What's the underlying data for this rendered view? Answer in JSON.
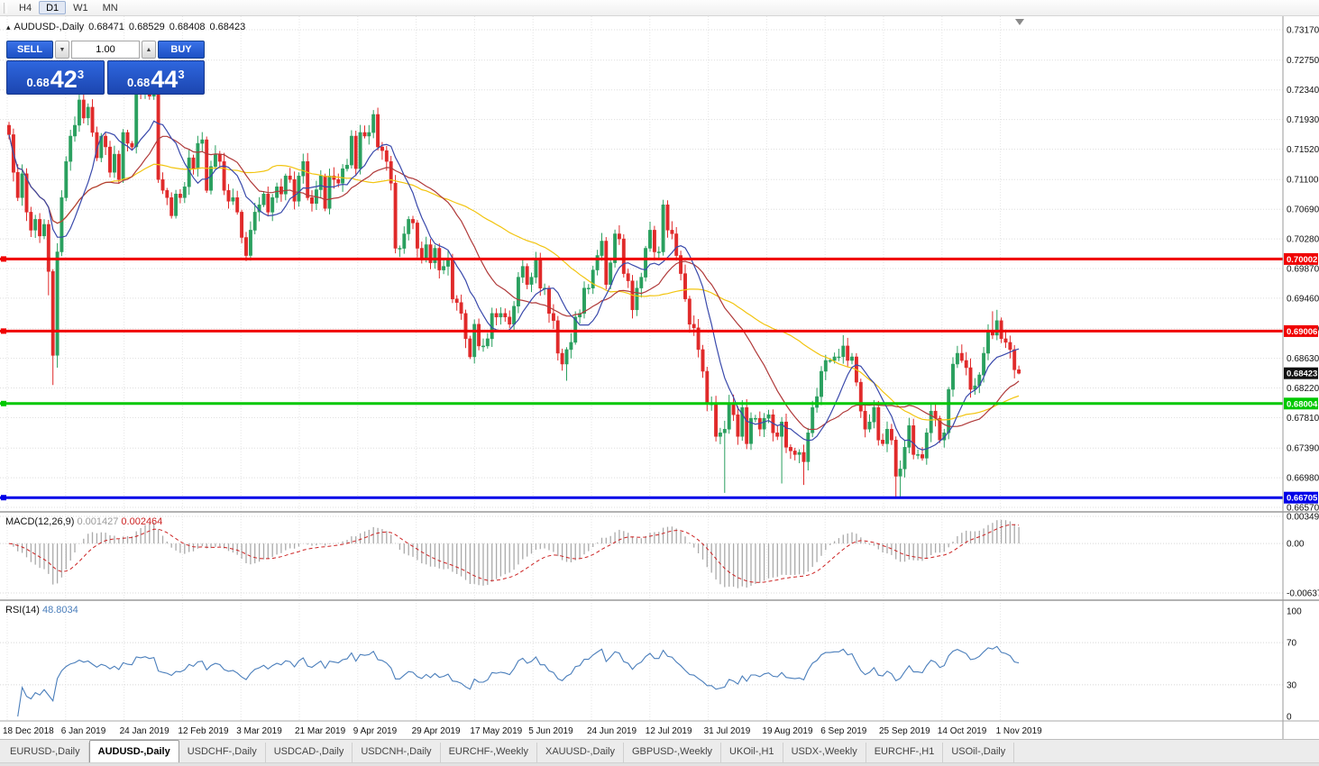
{
  "toolbar": {
    "periods": [
      {
        "label": "H4",
        "active": false
      },
      {
        "label": "D1",
        "active": true
      },
      {
        "label": "W1",
        "active": false
      },
      {
        "label": "MN",
        "active": false
      }
    ]
  },
  "chart": {
    "title": {
      "collapse_arrow": "▴",
      "symbol_period": "AUDUSD-,Daily",
      "open": "0.68471",
      "high": "0.68529",
      "low": "0.68408",
      "close": "0.68423"
    },
    "one_click": {
      "sell_label": "SELL",
      "buy_label": "BUY",
      "volume": "1.00",
      "sell_price": {
        "prefix": "0.68",
        "big": "42",
        "sup": "3"
      },
      "buy_price": {
        "prefix": "0.68",
        "big": "44",
        "sup": "3"
      }
    },
    "colors": {
      "up": "#2aa05f",
      "down": "#e02a2a",
      "ma_yellow": "#f2c40f",
      "ma_red": "#b03a3a",
      "ma_blue": "#3949ab",
      "macd_hist": "#aaaaaa",
      "macd_signal": "#cc2222",
      "rsi": "#4a7ebb",
      "level_red": "#f00000",
      "level_green": "#00c800",
      "level_blue": "#0000e8",
      "tag_black": "#101010"
    },
    "price_scale": {
      "labels": [
        "0.73170",
        "0.72750",
        "0.72340",
        "0.71930",
        "0.71520",
        "0.71100",
        "0.70690",
        "0.70280",
        "0.69870",
        "0.69460",
        "0.69040",
        "0.68630",
        "0.68220",
        "0.67810",
        "0.67390",
        "0.66980",
        "0.66570"
      ]
    },
    "levels": [
      {
        "price": 0.70002,
        "label": "0.70002",
        "color_key": "level_red"
      },
      {
        "price": 0.69006,
        "label": "0.69006",
        "color_key": "level_red"
      },
      {
        "price": 0.68004,
        "label": "0.68004",
        "color_key": "level_green"
      },
      {
        "price": 0.66705,
        "label": "0.66705",
        "color_key": "level_blue"
      }
    ],
    "current_price": {
      "value": 0.68423,
      "label": "0.68423"
    }
  },
  "chart_data": {
    "type": "candlestick",
    "symbol": "AUDUSD",
    "timeframe": "Daily",
    "first_open": 0.7185,
    "closes": [
      0.7172,
      0.712,
      0.7085,
      0.7118,
      0.7065,
      0.704,
      0.7055,
      0.7032,
      0.7048,
      0.6983,
      0.6867,
      0.701,
      0.7085,
      0.7135,
      0.717,
      0.7185,
      0.722,
      0.7195,
      0.721,
      0.7175,
      0.714,
      0.717,
      0.7155,
      0.712,
      0.7145,
      0.711,
      0.7175,
      0.716,
      0.7155,
      0.7235,
      0.7228,
      0.724,
      0.7225,
      0.7235,
      0.711,
      0.7095,
      0.7085,
      0.706,
      0.709,
      0.7085,
      0.71,
      0.714,
      0.7125,
      0.716,
      0.7165,
      0.7095,
      0.7128,
      0.7145,
      0.7135,
      0.7095,
      0.708,
      0.7085,
      0.7065,
      0.703,
      0.7005,
      0.704,
      0.7065,
      0.7075,
      0.709,
      0.7065,
      0.7085,
      0.71,
      0.709,
      0.7115,
      0.711,
      0.708,
      0.7115,
      0.7135,
      0.7085,
      0.7077,
      0.7096,
      0.7115,
      0.707,
      0.7115,
      0.711,
      0.7105,
      0.7125,
      0.713,
      0.717,
      0.7125,
      0.7175,
      0.717,
      0.7175,
      0.72,
      0.7155,
      0.715,
      0.7135,
      0.7105,
      0.7015,
      0.7015,
      0.7035,
      0.7055,
      0.705,
      0.7015,
      0.7,
      0.702,
      0.6995,
      0.7015,
      0.6985,
      0.699,
      0.7,
      0.6945,
      0.694,
      0.6925,
      0.689,
      0.6865,
      0.691,
      0.688,
      0.688,
      0.689,
      0.6925,
      0.692,
      0.6925,
      0.692,
      0.691,
      0.6935,
      0.6975,
      0.699,
      0.6965,
      0.6975,
      0.7,
      0.696,
      0.696,
      0.6925,
      0.6915,
      0.687,
      0.6855,
      0.6875,
      0.6885,
      0.692,
      0.6925,
      0.696,
      0.696,
      0.6985,
      0.7005,
      0.7025,
      0.6965,
      0.6995,
      0.7035,
      0.7028,
      0.698,
      0.697,
      0.693,
      0.696,
      0.6975,
      0.7015,
      0.704,
      0.701,
      0.701,
      0.7075,
      0.704,
      0.7035,
      0.7005,
      0.698,
      0.6945,
      0.691,
      0.6905,
      0.6875,
      0.6845,
      0.68,
      0.68,
      0.6755,
      0.676,
      0.6765,
      0.68,
      0.6785,
      0.6755,
      0.6795,
      0.6745,
      0.678,
      0.678,
      0.6765,
      0.678,
      0.6785,
      0.676,
      0.6755,
      0.6775,
      0.674,
      0.6735,
      0.673,
      0.6733,
      0.672,
      0.676,
      0.6795,
      0.681,
      0.6845,
      0.686,
      0.686,
      0.6865,
      0.6865,
      0.688,
      0.686,
      0.6865,
      0.683,
      0.679,
      0.6765,
      0.6775,
      0.6795,
      0.675,
      0.6745,
      0.6765,
      0.675,
      0.67,
      0.671,
      0.674,
      0.677,
      0.673,
      0.673,
      0.6725,
      0.676,
      0.679,
      0.678,
      0.675,
      0.676,
      0.682,
      0.6855,
      0.687,
      0.686,
      0.685,
      0.682,
      0.6825,
      0.684,
      0.687,
      0.69,
      0.6895,
      0.6915,
      0.689,
      0.6885,
      0.6875,
      0.68471,
      0.68423
    ],
    "overrides": {
      "high": {
        "11": 0.7022,
        "16": 0.7236,
        "29": 0.7241,
        "31": 0.7246,
        "83": 0.7206,
        "120": 0.701,
        "149": 0.7082,
        "190": 0.6895,
        "224": 0.6928,
        "225": 0.693,
        "230": 0.68529
      },
      "low": {
        "9": 0.695,
        "10": 0.6826,
        "11": 0.685,
        "88": 0.7008,
        "105": 0.6862,
        "125": 0.686,
        "127": 0.6832,
        "161": 0.6748,
        "163": 0.6677,
        "176": 0.669,
        "181": 0.6688,
        "202": 0.6671,
        "203": 0.667,
        "230": 0.68408
      }
    },
    "ma": [
      {
        "period": 50,
        "color_key": "ma_yellow"
      },
      {
        "period": 24,
        "color_key": "ma_red"
      },
      {
        "period": 10,
        "color_key": "ma_blue"
      }
    ],
    "macd": {
      "label": "MACD(12,26,9)",
      "values": [
        "0.001427",
        "0.002464"
      ],
      "scale": {
        "max": 0.00349,
        "min": -0.00637
      },
      "scale_labels": [
        "0.00349",
        "0.00",
        "-0.00637"
      ]
    },
    "rsi": {
      "label": "RSI(14)",
      "value": "48.8034",
      "levels": [
        100,
        70,
        30,
        0
      ]
    },
    "date_labels": [
      "18 Dec 2018",
      "6 Jan 2019",
      "24 Jan 2019",
      "12 Feb 2019",
      "3 Mar 2019",
      "21 Mar 2019",
      "9 Apr 2019",
      "29 Apr 2019",
      "17 May 2019",
      "5 Jun 2019",
      "24 Jun 2019",
      "12 Jul 2019",
      "31 Jul 2019",
      "19 Aug 2019",
      "6 Sep 2019",
      "25 Sep 2019",
      "14 Oct 2019",
      "1 Nov 2019"
    ]
  },
  "tabs": [
    {
      "label": "EURUSD-,Daily",
      "active": false
    },
    {
      "label": "AUDUSD-,Daily",
      "active": true
    },
    {
      "label": "USDCHF-,Daily",
      "active": false
    },
    {
      "label": "USDCAD-,Daily",
      "active": false
    },
    {
      "label": "USDCNH-,Daily",
      "active": false
    },
    {
      "label": "EURCHF-,Weekly",
      "active": false
    },
    {
      "label": "XAUUSD-,Daily",
      "active": false
    },
    {
      "label": "GBPUSD-,Weekly",
      "active": false
    },
    {
      "label": "UKOil-,H1",
      "active": false
    },
    {
      "label": "USDX-,Weekly",
      "active": false
    },
    {
      "label": "EURCHF-,H1",
      "active": false
    },
    {
      "label": "USOil-,Daily",
      "active": false
    }
  ]
}
